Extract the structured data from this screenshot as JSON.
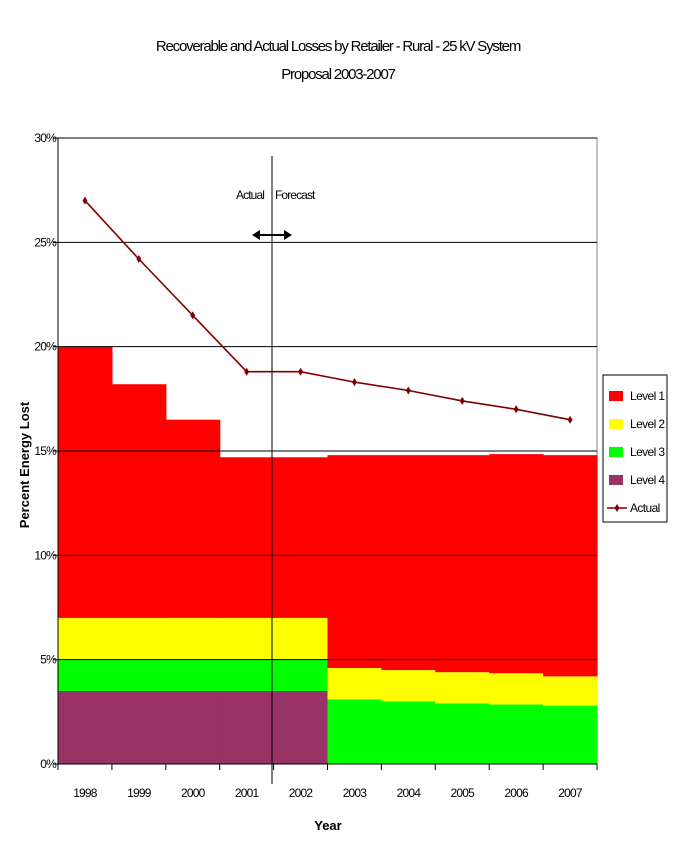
{
  "chart_data": {
    "type": "area",
    "title_lines": [
      "Recoverable and Actual Losses by Retailer - Rural - 25 kV System",
      "Proposal 2003-2007"
    ],
    "xlabel": "Year",
    "ylabel": "Percent Energy Lost",
    "categories": [
      "1998",
      "1999",
      "2000",
      "2001",
      "2002",
      "2003",
      "2004",
      "2005",
      "2006",
      "2007"
    ],
    "y_ticks": [
      "0%",
      "5%",
      "10%",
      "15%",
      "20%",
      "25%",
      "30%"
    ],
    "ylim": [
      0,
      30
    ],
    "y_unit": "%",
    "grid": "horizontal major gridlines",
    "legend_position": "right",
    "stacked_series": [
      {
        "name": "Level 1",
        "color": "#ff0000",
        "values": [
          13.0,
          11.2,
          9.5,
          7.7,
          7.7,
          10.2,
          10.3,
          10.4,
          10.5,
          10.6
        ]
      },
      {
        "name": "Level 2",
        "color": "#ffff00",
        "values": [
          2.0,
          2.0,
          2.0,
          2.0,
          2.0,
          1.5,
          1.5,
          1.5,
          1.5,
          1.4
        ]
      },
      {
        "name": "Level 3",
        "color": "#00ff00",
        "values": [
          1.5,
          1.5,
          1.5,
          1.5,
          1.5,
          3.1,
          3.0,
          2.9,
          2.85,
          2.8
        ]
      },
      {
        "name": "Level 4",
        "color": "#993366",
        "values": [
          3.5,
          3.5,
          3.5,
          3.5,
          3.5,
          0,
          0,
          0,
          0,
          0
        ]
      }
    ],
    "line_series": {
      "name": "Actual",
      "color": "#800000",
      "values": [
        27.0,
        24.2,
        21.5,
        18.8,
        18.8,
        18.3,
        17.9,
        17.4,
        17.0,
        16.5
      ]
    },
    "annotations": {
      "divider_between": [
        "2001",
        "2002"
      ],
      "left_label": "Actual",
      "right_label": "Forecast",
      "arrow": "double-headed horizontal arrow across the divider"
    }
  }
}
